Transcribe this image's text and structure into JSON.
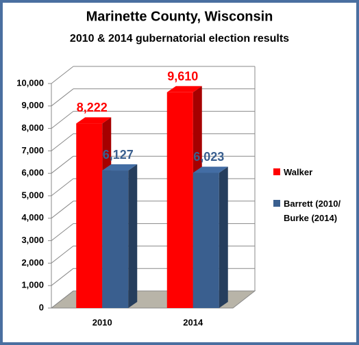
{
  "chart_data": {
    "type": "bar3d",
    "title": "Marinette County, Wisconsin",
    "subtitle": "2010 & 2014 gubernatorial election results",
    "categories": [
      "2010",
      "2014"
    ],
    "series": [
      {
        "name": "Walker",
        "color": "#ff0000",
        "values": [
          8222,
          9610
        ],
        "value_labels": [
          "8,222",
          "9,610"
        ]
      },
      {
        "name": "Barrett (2010/ Burke (2014)",
        "color": "#3a5f8f",
        "values": [
          6127,
          6023
        ],
        "value_labels": [
          "6,127",
          "6,023"
        ]
      }
    ],
    "ylim": [
      0,
      10000
    ],
    "yticks": [
      0,
      {
        "value": 1000,
        "label": "1,000"
      },
      {
        "value": 2000,
        "label": "2,000"
      },
      {
        "value": 3000,
        "label": "3,000"
      },
      {
        "value": 4000,
        "label": "4,000"
      },
      {
        "value": 5000,
        "label": "5,000"
      },
      {
        "value": 6000,
        "label": "6,000"
      },
      {
        "value": 7000,
        "label": "7,000"
      },
      {
        "value": 8000,
        "label": "8,000"
      },
      {
        "value": 9000,
        "label": "9,000"
      },
      {
        "value": 10000,
        "label": "10,000"
      }
    ],
    "grid": true,
    "legend": "right"
  }
}
